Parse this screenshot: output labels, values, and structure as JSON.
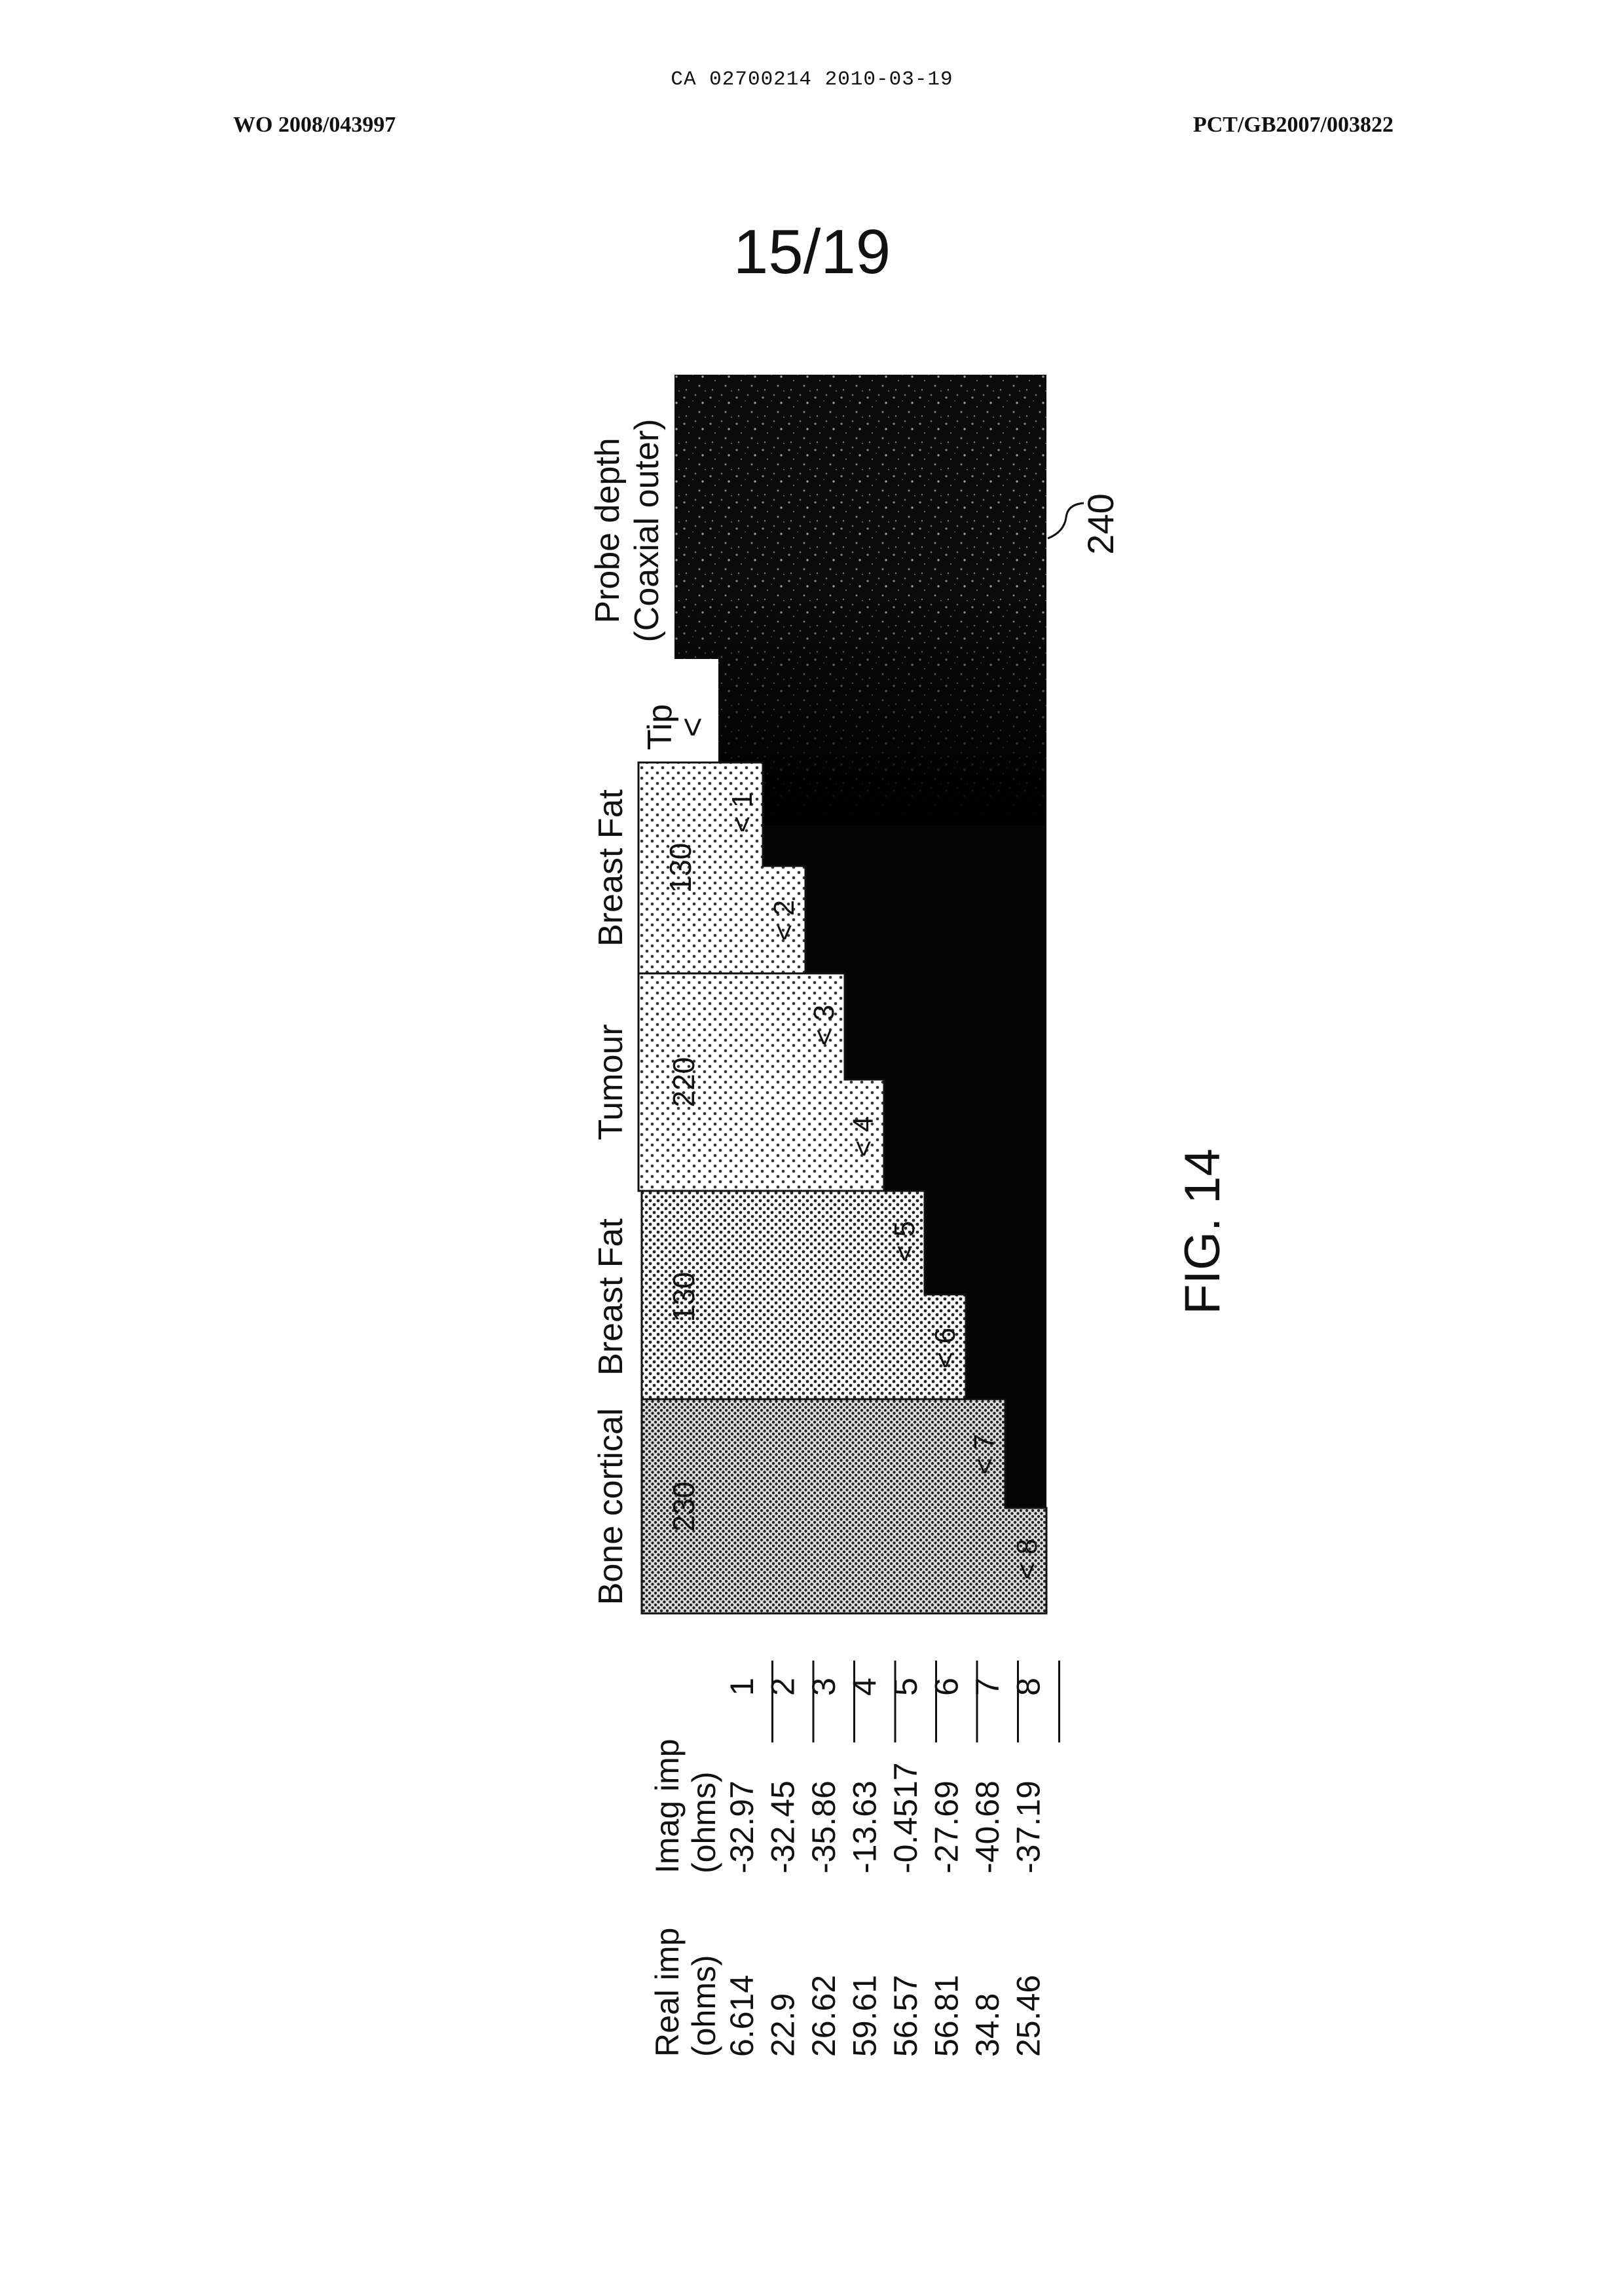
{
  "header": {
    "doc_id": "CA 02700214 2010-03-19",
    "wo_number": "WO 2008/043997",
    "pct_number": "PCT/GB2007/003822"
  },
  "sheet_number": "15/19",
  "figure": {
    "caption": "FIG. 14",
    "ref_outer": "240",
    "probe_label_line1": "Probe depth",
    "probe_label_line2": "(Coaxial outer)",
    "tip_label": "Tip",
    "tip_marker": "<",
    "regions": [
      {
        "label": "Breast Fat",
        "ref": "130",
        "markers": [
          "< 1",
          "< 2"
        ]
      },
      {
        "label": "Tumour",
        "ref": "220",
        "markers": [
          "< 3",
          "< 4"
        ]
      },
      {
        "label": "Breast Fat",
        "ref": "130",
        "markers": [
          "< 5",
          "< 6"
        ]
      },
      {
        "label": "Bone cortical",
        "ref": "230",
        "markers": [
          "< 7",
          "< 8"
        ]
      }
    ]
  },
  "table": {
    "real_header_1": "Real imp",
    "real_header_2": "(ohms)",
    "imag_header_1": "Imag imp",
    "imag_header_2": "(ohms)",
    "rows": [
      {
        "index": "1",
        "real": "6.614",
        "imag": "-32.97"
      },
      {
        "index": "2",
        "real": "22.9",
        "imag": "-32.45"
      },
      {
        "index": "3",
        "real": "26.62",
        "imag": "-35.86"
      },
      {
        "index": "4",
        "real": "59.61",
        "imag": "-13.63"
      },
      {
        "index": "5",
        "real": "56.57",
        "imag": "-0.4517"
      },
      {
        "index": "6",
        "real": "56.81",
        "imag": "-27.69"
      },
      {
        "index": "7",
        "real": "34.8",
        "imag": "-40.68"
      },
      {
        "index": "8",
        "real": "25.46",
        "imag": "-37.19"
      }
    ]
  }
}
